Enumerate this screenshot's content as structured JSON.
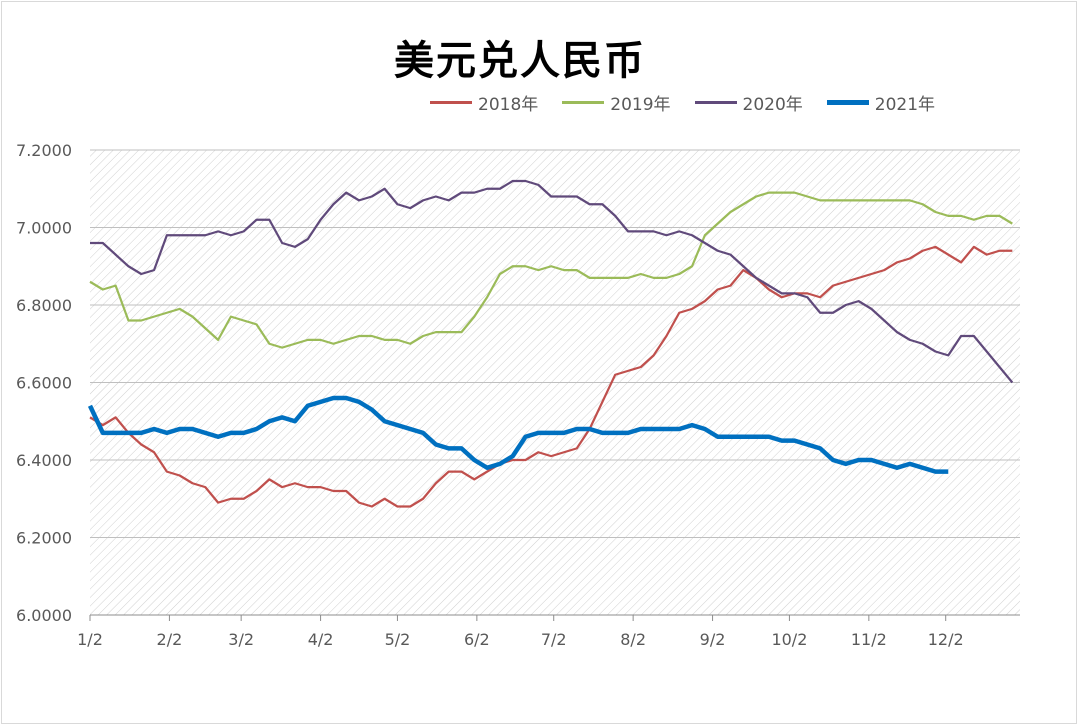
{
  "chart_data": {
    "type": "line",
    "title": "美元兑人民币",
    "xlabel": "",
    "ylabel": "",
    "ylim": [
      6.0,
      7.2
    ],
    "yticks": [
      "6.0000",
      "6.2000",
      "6.4000",
      "6.6000",
      "6.8000",
      "7.0000",
      "7.2000"
    ],
    "xticks": [
      "1/2",
      "2/2",
      "3/2",
      "4/2",
      "5/2",
      "6/2",
      "7/2",
      "8/2",
      "9/2",
      "10/2",
      "11/2",
      "12/2"
    ],
    "legend_position": "top",
    "background_pattern": "diagonal-hatch",
    "series": [
      {
        "name": "2018年",
        "color": "#c0504d",
        "x_days": [
          0,
          5,
          10,
          15,
          20,
          25,
          30,
          35,
          40,
          45,
          50,
          55,
          60,
          65,
          70,
          75,
          80,
          85,
          90,
          95,
          100,
          105,
          110,
          115,
          120,
          125,
          130,
          135,
          140,
          145,
          150,
          155,
          160,
          165,
          170,
          175,
          180,
          185,
          190,
          195,
          200,
          205,
          210,
          215,
          220,
          225,
          230,
          235,
          240,
          245,
          250,
          255,
          260,
          265,
          270,
          275,
          280,
          285,
          290,
          295,
          300,
          305,
          310,
          315,
          320,
          325,
          330,
          335,
          340,
          345,
          350,
          355,
          360
        ],
        "values": [
          6.51,
          6.49,
          6.51,
          6.47,
          6.44,
          6.42,
          6.37,
          6.36,
          6.34,
          6.33,
          6.29,
          6.3,
          6.3,
          6.32,
          6.35,
          6.33,
          6.34,
          6.33,
          6.33,
          6.32,
          6.32,
          6.29,
          6.28,
          6.3,
          6.28,
          6.28,
          6.3,
          6.34,
          6.37,
          6.37,
          6.35,
          6.37,
          6.39,
          6.4,
          6.4,
          6.42,
          6.41,
          6.42,
          6.43,
          6.48,
          6.55,
          6.62,
          6.63,
          6.64,
          6.67,
          6.72,
          6.78,
          6.79,
          6.81,
          6.84,
          6.85,
          6.89,
          6.87,
          6.84,
          6.82,
          6.83,
          6.83,
          6.82,
          6.85,
          6.86,
          6.87,
          6.88,
          6.89,
          6.91,
          6.92,
          6.94,
          6.95,
          6.93,
          6.91,
          6.95,
          6.93,
          6.94,
          6.94
        ]
      },
      {
        "name": "2019年",
        "color": "#9bbb59",
        "x_days": [
          0,
          5,
          10,
          15,
          20,
          25,
          30,
          35,
          40,
          45,
          50,
          55,
          60,
          65,
          70,
          75,
          80,
          85,
          90,
          95,
          100,
          105,
          110,
          115,
          120,
          125,
          130,
          135,
          140,
          145,
          150,
          155,
          160,
          165,
          170,
          175,
          180,
          185,
          190,
          195,
          200,
          205,
          210,
          215,
          220,
          225,
          230,
          235,
          240,
          245,
          250,
          255,
          260,
          265,
          270,
          275,
          280,
          285,
          290,
          295,
          300,
          305,
          310,
          315,
          320,
          325,
          330,
          335,
          340,
          345,
          350,
          355,
          360
        ],
        "values": [
          6.86,
          6.84,
          6.85,
          6.76,
          6.76,
          6.77,
          6.78,
          6.79,
          6.77,
          6.74,
          6.71,
          6.77,
          6.76,
          6.75,
          6.7,
          6.69,
          6.7,
          6.71,
          6.71,
          6.7,
          6.71,
          6.72,
          6.72,
          6.71,
          6.71,
          6.7,
          6.72,
          6.73,
          6.73,
          6.73,
          6.77,
          6.82,
          6.88,
          6.9,
          6.9,
          6.89,
          6.9,
          6.89,
          6.89,
          6.87,
          6.87,
          6.87,
          6.87,
          6.88,
          6.87,
          6.87,
          6.88,
          6.9,
          6.98,
          7.01,
          7.04,
          7.06,
          7.08,
          7.09,
          7.09,
          7.09,
          7.08,
          7.07,
          7.07,
          7.07,
          7.07,
          7.07,
          7.07,
          7.07,
          7.07,
          7.06,
          7.04,
          7.03,
          7.03,
          7.02,
          7.03,
          7.03,
          7.01
        ]
      },
      {
        "name": "2020年",
        "color": "#604a7b",
        "x_days": [
          0,
          5,
          10,
          15,
          20,
          25,
          30,
          35,
          40,
          45,
          50,
          55,
          60,
          65,
          70,
          75,
          80,
          85,
          90,
          95,
          100,
          105,
          110,
          115,
          120,
          125,
          130,
          135,
          140,
          145,
          150,
          155,
          160,
          165,
          170,
          175,
          180,
          185,
          190,
          195,
          200,
          205,
          210,
          215,
          220,
          225,
          230,
          235,
          240,
          245,
          250,
          255,
          260,
          265,
          270,
          275,
          280,
          285,
          290,
          295,
          300,
          305,
          310,
          315,
          320,
          325,
          330,
          335,
          340,
          345,
          350,
          355,
          360
        ],
        "values": [
          6.96,
          6.96,
          6.93,
          6.9,
          6.88,
          6.89,
          6.98,
          6.98,
          6.98,
          6.98,
          6.99,
          6.98,
          6.99,
          7.02,
          7.02,
          6.96,
          6.95,
          6.97,
          7.02,
          7.06,
          7.09,
          7.07,
          7.08,
          7.1,
          7.06,
          7.05,
          7.07,
          7.08,
          7.07,
          7.09,
          7.09,
          7.1,
          7.1,
          7.12,
          7.12,
          7.11,
          7.08,
          7.08,
          7.08,
          7.06,
          7.06,
          7.03,
          6.99,
          6.99,
          6.99,
          6.98,
          6.99,
          6.98,
          6.96,
          6.94,
          6.93,
          6.9,
          6.87,
          6.85,
          6.83,
          6.83,
          6.82,
          6.78,
          6.78,
          6.8,
          6.81,
          6.79,
          6.76,
          6.73,
          6.71,
          6.7,
          6.68,
          6.67,
          6.72,
          6.72,
          6.68,
          6.64,
          6.6
        ]
      },
      {
        "name": "2021年",
        "color": "#0070c0",
        "x_days": [
          0,
          5,
          10,
          15,
          20,
          25,
          30,
          35,
          40,
          45,
          50,
          55,
          60,
          65,
          70,
          75,
          80,
          85,
          90,
          95,
          100,
          105,
          110,
          115,
          120,
          125,
          130,
          135,
          140,
          145,
          150,
          155,
          160,
          165,
          170,
          175,
          180,
          185,
          190,
          195,
          200,
          205,
          210,
          215,
          220,
          225,
          230,
          235,
          240,
          245,
          250,
          255,
          260,
          265,
          270,
          275,
          280,
          285,
          290,
          295,
          300,
          305,
          310,
          315,
          320,
          325,
          330,
          335
        ],
        "values": [
          6.54,
          6.47,
          6.47,
          6.47,
          6.47,
          6.48,
          6.47,
          6.48,
          6.48,
          6.47,
          6.46,
          6.47,
          6.47,
          6.48,
          6.5,
          6.51,
          6.5,
          6.54,
          6.55,
          6.56,
          6.56,
          6.55,
          6.53,
          6.5,
          6.49,
          6.48,
          6.47,
          6.44,
          6.43,
          6.43,
          6.4,
          6.38,
          6.39,
          6.41,
          6.46,
          6.47,
          6.47,
          6.47,
          6.48,
          6.48,
          6.47,
          6.47,
          6.47,
          6.48,
          6.48,
          6.48,
          6.48,
          6.49,
          6.48,
          6.46,
          6.46,
          6.46,
          6.46,
          6.46,
          6.45,
          6.45,
          6.44,
          6.43,
          6.4,
          6.39,
          6.4,
          6.4,
          6.39,
          6.38,
          6.39,
          6.38,
          6.37,
          6.37
        ]
      }
    ]
  }
}
